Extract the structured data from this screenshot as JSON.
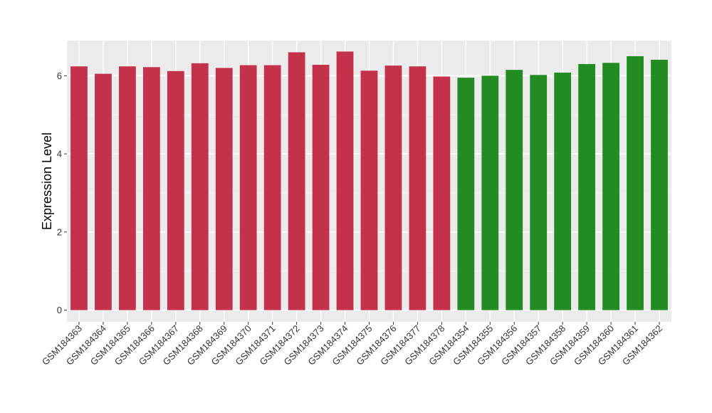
{
  "chart_data": {
    "type": "bar",
    "xlabel": "",
    "ylabel": "Expression Level",
    "ylim": [
      -0.3,
      6.9
    ],
    "yticks": [
      0,
      2,
      4,
      6
    ],
    "grid": true,
    "legend": "none",
    "colors": {
      "group_a": "#C4314B",
      "group_b": "#228B22",
      "panel_bg": "#EBEBEB",
      "grid_major": "#FFFFFF"
    },
    "categories": [
      "GSM184363",
      "GSM184364",
      "GSM184365",
      "GSM184366",
      "GSM184367",
      "GSM184368",
      "GSM184369",
      "GSM184370",
      "GSM184371",
      "GSM184372",
      "GSM184373",
      "GSM184374",
      "GSM184375",
      "GSM184376",
      "GSM184377",
      "GSM184378",
      "GSM184354",
      "GSM184355",
      "GSM184356",
      "GSM184357",
      "GSM184358",
      "GSM184359",
      "GSM184360",
      "GSM184361",
      "GSM184362"
    ],
    "values": [
      6.24,
      6.05,
      6.24,
      6.22,
      6.12,
      6.32,
      6.2,
      6.27,
      6.27,
      6.6,
      6.28,
      6.62,
      6.13,
      6.26,
      6.24,
      5.98,
      5.95,
      6.0,
      6.15,
      6.02,
      6.08,
      6.3,
      6.33,
      6.5,
      6.41
    ],
    "groups": [
      "a",
      "a",
      "a",
      "a",
      "a",
      "a",
      "a",
      "a",
      "a",
      "a",
      "a",
      "a",
      "a",
      "a",
      "a",
      "a",
      "b",
      "b",
      "b",
      "b",
      "b",
      "b",
      "b",
      "b",
      "b"
    ]
  }
}
